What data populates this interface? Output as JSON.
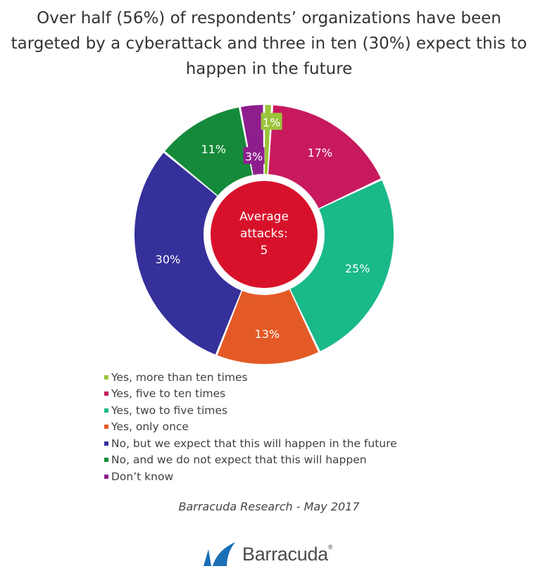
{
  "title": "Over half (56%) of respondents’ organizations have been targeted by a cyberattack and three in ten (30%) expect this to happen in the future",
  "chart_data": {
    "type": "pie",
    "donut": true,
    "center_label": [
      "Average",
      "attacks:",
      "5"
    ],
    "slices": [
      {
        "label": "Yes, more than ten times",
        "value": 1,
        "display": "1%",
        "color": "#9bc43a"
      },
      {
        "label": "Yes, five to ten times",
        "value": 17,
        "display": "17%",
        "color": "#c8195f"
      },
      {
        "label": "Yes, two to five times",
        "value": 25,
        "display": "25%",
        "color": "#19b98a"
      },
      {
        "label": "Yes, only once",
        "value": 13,
        "display": "13%",
        "color": "#e45a26"
      },
      {
        "label": "No, but we expect that this will happen in the future",
        "value": 30,
        "display": "30%",
        "color": "#35309a"
      },
      {
        "label": "No, and we do not expect that this will happen",
        "value": 11,
        "display": "11%",
        "color": "#158a3a"
      },
      {
        "label": "Don’t know",
        "value": 3,
        "display": "3%",
        "color": "#8e1e8e"
      }
    ],
    "center_color": "#d8112b",
    "legend_position": "bottom-left"
  },
  "source": "Barracuda Research - May 2017",
  "brand": {
    "name": "Barracuda",
    "mark": "®",
    "color": "#1a6fb5"
  }
}
